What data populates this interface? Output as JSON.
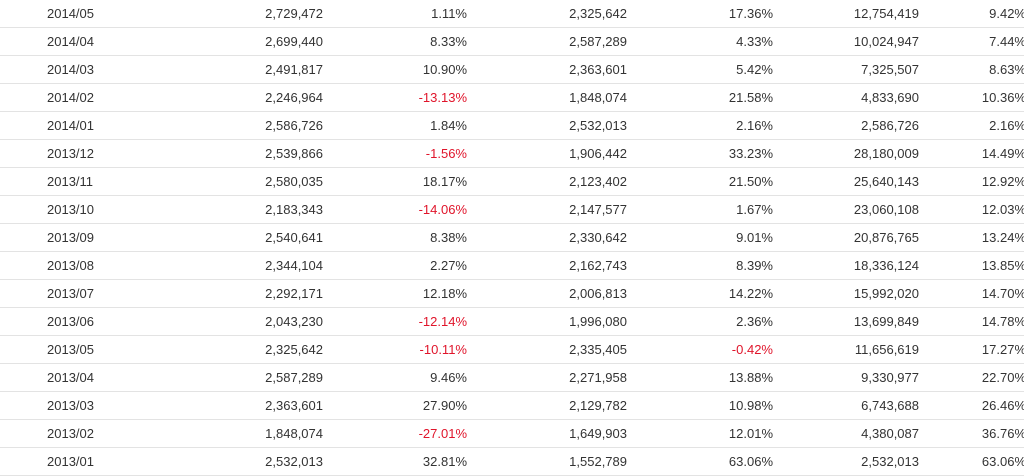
{
  "table": {
    "rows": [
      [
        "2014/05",
        "2,729,472",
        "1.11%",
        "2,325,642",
        "17.36%",
        "12,754,419",
        "9.42%"
      ],
      [
        "2014/04",
        "2,699,440",
        "8.33%",
        "2,587,289",
        "4.33%",
        "10,024,947",
        "7.44%"
      ],
      [
        "2014/03",
        "2,491,817",
        "10.90%",
        "2,363,601",
        "5.42%",
        "7,325,507",
        "8.63%"
      ],
      [
        "2014/02",
        "2,246,964",
        "-13.13%",
        "1,848,074",
        "21.58%",
        "4,833,690",
        "10.36%"
      ],
      [
        "2014/01",
        "2,586,726",
        "1.84%",
        "2,532,013",
        "2.16%",
        "2,586,726",
        "2.16%"
      ],
      [
        "2013/12",
        "2,539,866",
        "-1.56%",
        "1,906,442",
        "33.23%",
        "28,180,009",
        "14.49%"
      ],
      [
        "2013/11",
        "2,580,035",
        "18.17%",
        "2,123,402",
        "21.50%",
        "25,640,143",
        "12.92%"
      ],
      [
        "2013/10",
        "2,183,343",
        "-14.06%",
        "2,147,577",
        "1.67%",
        "23,060,108",
        "12.03%"
      ],
      [
        "2013/09",
        "2,540,641",
        "8.38%",
        "2,330,642",
        "9.01%",
        "20,876,765",
        "13.24%"
      ],
      [
        "2013/08",
        "2,344,104",
        "2.27%",
        "2,162,743",
        "8.39%",
        "18,336,124",
        "13.85%"
      ],
      [
        "2013/07",
        "2,292,171",
        "12.18%",
        "2,006,813",
        "14.22%",
        "15,992,020",
        "14.70%"
      ],
      [
        "2013/06",
        "2,043,230",
        "-12.14%",
        "1,996,080",
        "2.36%",
        "13,699,849",
        "14.78%"
      ],
      [
        "2013/05",
        "2,325,642",
        "-10.11%",
        "2,335,405",
        "-0.42%",
        "11,656,619",
        "17.27%"
      ],
      [
        "2013/04",
        "2,587,289",
        "9.46%",
        "2,271,958",
        "13.88%",
        "9,330,977",
        "22.70%"
      ],
      [
        "2013/03",
        "2,363,601",
        "27.90%",
        "2,129,782",
        "10.98%",
        "6,743,688",
        "26.46%"
      ],
      [
        "2013/02",
        "1,848,074",
        "-27.01%",
        "1,649,903",
        "12.01%",
        "4,380,087",
        "36.76%"
      ],
      [
        "2013/01",
        "2,532,013",
        "32.81%",
        "1,552,789",
        "63.06%",
        "2,532,013",
        "63.06%"
      ]
    ]
  },
  "colors": {
    "text": "#333333",
    "negative": "#e0152b",
    "row_border": "#e3e3e3"
  }
}
